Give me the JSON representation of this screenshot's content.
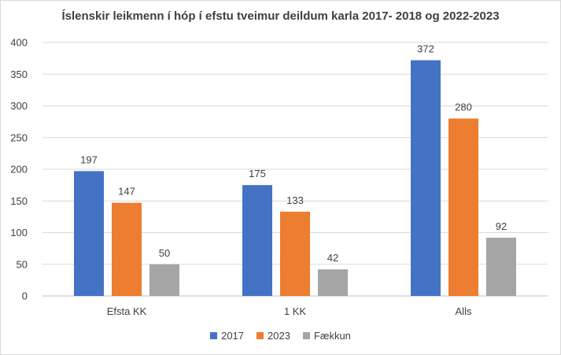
{
  "chart_data": {
    "type": "bar",
    "title": "Íslenskir leikmenn í hóp  í efstu tveimur deildum karla 2017- 2018 og 2022-2023",
    "categories": [
      "Efsta KK",
      "1 KK",
      "Alls"
    ],
    "series": [
      {
        "name": "2017",
        "values": [
          197,
          175,
          372
        ],
        "color": "#4472c4"
      },
      {
        "name": "2023",
        "values": [
          147,
          133,
          280
        ],
        "color": "#ed7d31"
      },
      {
        "name": "Fækkun",
        "values": [
          50,
          42,
          92
        ],
        "color": "#a5a5a5"
      }
    ],
    "ylim": [
      0,
      400
    ],
    "yticks": [
      0,
      50,
      100,
      150,
      200,
      250,
      300,
      350,
      400
    ],
    "grid": true,
    "legend": "bottom-center",
    "data_labels": true
  }
}
